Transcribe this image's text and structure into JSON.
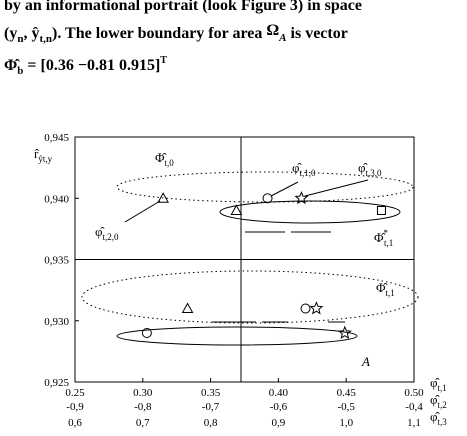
{
  "text": {
    "line1": [
      "by an informational portrait (look ",
      "Figure 3",
      ") in space"
    ],
    "line2": [
      "(y",
      "n",
      ", ŷ",
      "t,n",
      ")",
      ". The lower boundary for area ",
      "Ω",
      "A",
      " is vector"
    ],
    "line3": [
      "Φ̂",
      "b",
      " = [0.36 −0.81  0.915]",
      "T"
    ]
  },
  "chart_data": {
    "type": "scatter",
    "y_label": [
      "r̂",
      "ŷt,y"
    ],
    "x_labels": [
      [
        "φ̂",
        "t,1"
      ],
      [
        "φ̂",
        "t,2"
      ],
      [
        "φ̂",
        "t,3"
      ]
    ],
    "xlim": [
      0.25,
      0.5
    ],
    "ylim": [
      0.925,
      0.945
    ],
    "xticks": [
      {
        "value": 0.25,
        "label": "0.25"
      },
      {
        "value": 0.3,
        "label": "0.30"
      },
      {
        "value": 0.35,
        "label": "0.35"
      },
      {
        "value": 0.4,
        "label": "0.40"
      },
      {
        "value": 0.45,
        "label": "0.45"
      },
      {
        "value": 0.5,
        "label": "0.50"
      }
    ],
    "xticks_row2": [
      "-0,9",
      "-0,8",
      "-0,7",
      "-0,6",
      "-0,5",
      "-0,4"
    ],
    "xticks_row3": [
      "0,6",
      "0,7",
      "0,8",
      "0,9",
      "1,0",
      "1,1"
    ],
    "yticks": [
      {
        "value": 0.945,
        "label": "0,945"
      },
      {
        "value": 0.94,
        "label": "0,940"
      },
      {
        "value": 0.935,
        "label": "0,935"
      },
      {
        "value": 0.93,
        "label": "0,930"
      },
      {
        "value": 0.925,
        "label": "0,925"
      }
    ],
    "points": [
      {
        "marker": "triangle",
        "x": 0.315,
        "y": 0.94
      },
      {
        "marker": "circle",
        "x": 0.392,
        "y": 0.94
      },
      {
        "marker": "star",
        "x": 0.417,
        "y": 0.94
      },
      {
        "marker": "triangle",
        "x": 0.369,
        "y": 0.939
      },
      {
        "marker": "square",
        "x": 0.476,
        "y": 0.939
      },
      {
        "marker": "triangle",
        "x": 0.333,
        "y": 0.931
      },
      {
        "marker": "circle",
        "x": 0.42,
        "y": 0.931
      },
      {
        "marker": "star",
        "x": 0.428,
        "y": 0.931
      },
      {
        "marker": "circle",
        "x": 0.303,
        "y": 0.929
      },
      {
        "marker": "star",
        "x": 0.449,
        "y": 0.929
      }
    ],
    "annotations": {
      "phi_t0": [
        "Φ̂",
        "t,0"
      ],
      "phi_t10": [
        "φ̂",
        "t,1,0"
      ],
      "phi_t30": [
        "φ̂",
        "t,3,0"
      ],
      "phi_t20": [
        "φ̂",
        "t,2,0"
      ],
      "phi_star": [
        "Φ̂",
        "*",
        "t,1"
      ],
      "phi_t1": [
        "Φ̂",
        "t,1"
      ],
      "area": "A"
    }
  }
}
